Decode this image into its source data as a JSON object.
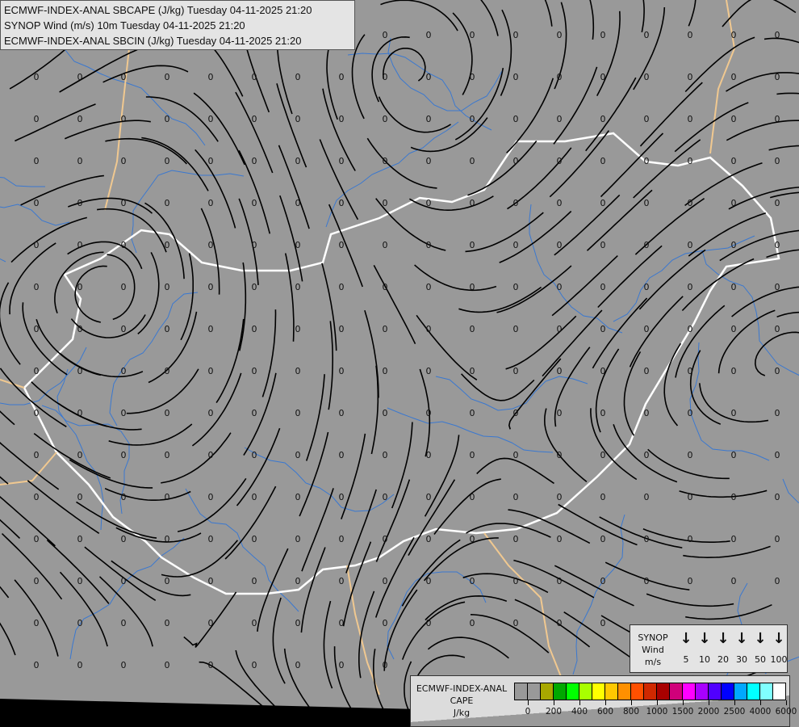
{
  "header": {
    "lines": [
      "ECMWF-INDEX-ANAL SBCAPE (J/kg) Tuesday 04-11-2025 21:20",
      "SYNOP Wind (m/s) 10m Tuesday 04-11-2025 21:20",
      "ECMWF-INDEX-ANAL SBCIN (J/kg) Tuesday 04-11-2025 21:20"
    ]
  },
  "map": {
    "background_color": "#999999",
    "field_value": "0",
    "country_border_color": "#ffffff",
    "neighbor_border_color": "#f0c890",
    "river_color": "#3a78d0",
    "streamline_color": "#000000"
  },
  "wind_legend": {
    "title_lines": [
      "SYNOP",
      "Wind",
      "m/s"
    ],
    "icon": "arrow-down-icon",
    "speeds": [
      "5",
      "10",
      "20",
      "30",
      "50",
      "100"
    ]
  },
  "cape_legend": {
    "title_lines": [
      "ECMWF-INDEX-ANAL",
      "CAPE",
      "J/kg"
    ],
    "colors": [
      "#999999",
      "#999999",
      "#a8a800",
      "#00a800",
      "#00ff00",
      "#a8ff00",
      "#ffff00",
      "#ffc800",
      "#ff9000",
      "#ff5000",
      "#d02800",
      "#a80000",
      "#d0007a",
      "#ff00ff",
      "#a800ff",
      "#5000ff",
      "#0000ff",
      "#00a8ff",
      "#00ffff",
      "#80ffff",
      "#ffffff"
    ],
    "tick_labels": [
      "0",
      "200",
      "400",
      "600",
      "800",
      "1000",
      "1500",
      "2000",
      "2500",
      "4000",
      "6000"
    ]
  }
}
